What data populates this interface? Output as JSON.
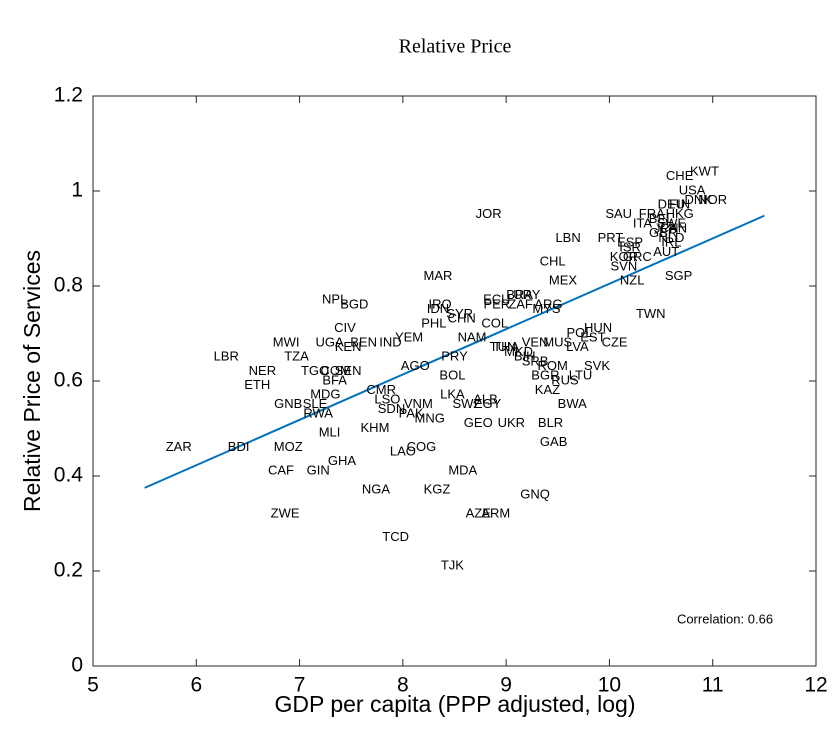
{
  "chart_data": {
    "type": "scatter",
    "title": "Relative Price",
    "x_label": "GDP per capita (PPP adjusted, log)",
    "y_label": "Relative Price of Services",
    "annotation": "Correlation: 0.66",
    "xlim": [
      5,
      12
    ],
    "ylim": [
      0,
      1.2
    ],
    "xticks": [
      5,
      6,
      7,
      8,
      9,
      10,
      11,
      12
    ],
    "yticks": [
      0,
      0.2,
      0.4,
      0.6,
      0.8,
      1,
      1.2
    ],
    "line_color": "#0072bd",
    "fit_line": {
      "x": [
        5.5,
        11.5
      ],
      "y": [
        0.375,
        0.948
      ]
    },
    "labels": [
      "ZAR",
      "BDI",
      "MOZ",
      "CAF",
      "GIN",
      "GHA",
      "ZWE",
      "NGA",
      "TCD",
      "TJK",
      "LAO",
      "COG",
      "MDA",
      "KGZ",
      "AZE",
      "ARM",
      "GNQ",
      "GAB",
      "BLR",
      "BWA",
      "KAZ",
      "RUS",
      "LTU",
      "BGR",
      "ROM",
      "SVK",
      "CZE",
      "HUN",
      "POL",
      "EST",
      "LVA",
      "MUS",
      "VEN",
      "LBN",
      "CHL",
      "MEX",
      "MYS",
      "BRA",
      "URY",
      "ECU",
      "PER",
      "ZAF",
      "ARG",
      "COL",
      "NAM",
      "TUN",
      "THA",
      "MKD",
      "SRB",
      "BIH",
      "JOR",
      "MAR",
      "IRQ",
      "IDN",
      "CHN",
      "SYR",
      "PHL",
      "EGY",
      "SWZ",
      "ALB",
      "LKA",
      "BOL",
      "PRY",
      "AGO",
      "YEM",
      "GEO",
      "UKR",
      "MNG",
      "PAK",
      "VNM",
      "SDN",
      "LSO",
      "IND",
      "BEN",
      "UGA",
      "CMR",
      "KHM",
      "MLI",
      "RWA",
      "SLE",
      "GNB",
      "MDG",
      "TGO",
      "SEN",
      "COM",
      "BFA",
      "NPL",
      "BGD",
      "CIV",
      "KEN",
      "TZA",
      "MWI",
      "LBR",
      "NER",
      "ETH",
      "TWN",
      "SGP",
      "NZL",
      "SVN",
      "KOR",
      "GRC",
      "PRT",
      "ESP",
      "ISR",
      "SAU",
      "ITA",
      "FRA",
      "HKG",
      "DEU",
      "FIN",
      "DNK",
      "USA",
      "CHE",
      "KWT",
      "NOR",
      "AUT",
      "JPN",
      "CAN",
      "NLD",
      "IRL",
      "BEL",
      "SWE",
      "GBR"
    ],
    "x": [
      5.83,
      6.41,
      6.89,
      6.82,
      7.18,
      7.41,
      6.86,
      7.74,
      7.93,
      8.48,
      8.0,
      8.18,
      8.58,
      8.33,
      8.73,
      8.9,
      9.28,
      9.46,
      9.43,
      9.64,
      9.4,
      9.57,
      9.72,
      9.38,
      9.45,
      9.88,
      10.05,
      9.89,
      9.71,
      9.84,
      9.69,
      9.5,
      9.28,
      9.6,
      9.45,
      9.55,
      9.39,
      9.13,
      9.2,
      8.91,
      8.91,
      9.14,
      9.41,
      8.89,
      8.67,
      8.97,
      9.0,
      9.12,
      9.28,
      9.18,
      8.83,
      8.34,
      8.36,
      8.34,
      8.57,
      8.55,
      8.3,
      8.82,
      8.62,
      8.8,
      8.48,
      8.48,
      8.5,
      8.12,
      8.06,
      8.73,
      9.05,
      8.26,
      8.08,
      8.15,
      7.89,
      7.85,
      7.88,
      7.62,
      7.29,
      7.79,
      7.73,
      7.29,
      7.18,
      7.15,
      6.89,
      7.25,
      7.15,
      7.47,
      7.35,
      7.34,
      7.34,
      7.53,
      7.44,
      7.47,
      6.97,
      6.87,
      6.29,
      6.64,
      6.59,
      10.4,
      10.67,
      10.22,
      10.14,
      10.14,
      10.27,
      10.01,
      10.2,
      10.2,
      10.09,
      10.32,
      10.41,
      10.68,
      10.6,
      10.68,
      10.86,
      10.8,
      10.68,
      10.92,
      11.0,
      10.55,
      10.55,
      10.62,
      10.6,
      10.6,
      10.5,
      10.6,
      10.52
    ],
    "y": [
      0.46,
      0.46,
      0.46,
      0.41,
      0.41,
      0.43,
      0.32,
      0.37,
      0.27,
      0.21,
      0.45,
      0.46,
      0.41,
      0.37,
      0.32,
      0.32,
      0.36,
      0.47,
      0.51,
      0.55,
      0.58,
      0.6,
      0.61,
      0.61,
      0.63,
      0.63,
      0.68,
      0.71,
      0.7,
      0.69,
      0.67,
      0.68,
      0.68,
      0.9,
      0.85,
      0.81,
      0.75,
      0.78,
      0.78,
      0.77,
      0.76,
      0.76,
      0.76,
      0.72,
      0.69,
      0.67,
      0.67,
      0.66,
      0.64,
      0.65,
      0.95,
      0.82,
      0.76,
      0.75,
      0.73,
      0.74,
      0.72,
      0.55,
      0.55,
      0.56,
      0.57,
      0.61,
      0.65,
      0.63,
      0.69,
      0.51,
      0.51,
      0.52,
      0.53,
      0.55,
      0.54,
      0.56,
      0.68,
      0.68,
      0.68,
      0.58,
      0.5,
      0.49,
      0.53,
      0.55,
      0.55,
      0.57,
      0.62,
      0.62,
      0.62,
      0.6,
      0.77,
      0.76,
      0.71,
      0.67,
      0.65,
      0.68,
      0.65,
      0.62,
      0.59,
      0.74,
      0.82,
      0.81,
      0.84,
      0.86,
      0.86,
      0.9,
      0.89,
      0.88,
      0.95,
      0.93,
      0.95,
      0.95,
      0.97,
      0.97,
      0.98,
      1.0,
      1.03,
      1.04,
      0.98,
      0.87,
      0.92,
      0.92,
      0.9,
      0.89,
      0.94,
      0.93,
      0.91
    ]
  }
}
